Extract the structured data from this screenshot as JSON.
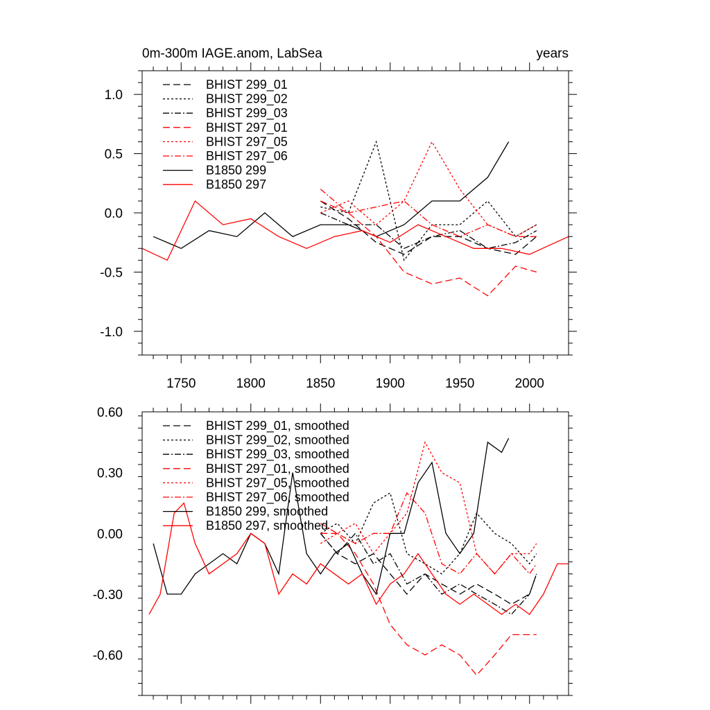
{
  "chart_data": [
    {
      "type": "line",
      "title": "0m-300m IAGE.anom, LabSea",
      "right_label": "years",
      "xlabel": "",
      "ylabel": "",
      "xlim": [
        1722,
        2028
      ],
      "ylim": [
        -1.2,
        1.2
      ],
      "xticks": [
        1750,
        1800,
        1850,
        1900,
        1950,
        2000
      ],
      "yticks": [
        -1.0,
        -0.5,
        0.0,
        0.5,
        1.0
      ],
      "ytick_labels": [
        "-1.0",
        "-0.5",
        "0.0",
        "0.5",
        "1.0"
      ],
      "legend_position": "top-left",
      "series": [
        {
          "name": "BHIST 299_01",
          "color": "#000000",
          "style": "dashed",
          "x": [
            1850,
            1870,
            1890,
            1910,
            1930,
            1950,
            1970,
            1990,
            2005
          ],
          "y": [
            0.1,
            -0.05,
            -0.25,
            -0.35,
            -0.2,
            -0.2,
            -0.3,
            -0.35,
            -0.2
          ]
        },
        {
          "name": "BHIST 299_02",
          "color": "#000000",
          "style": "dotted",
          "x": [
            1850,
            1870,
            1890,
            1910,
            1930,
            1950,
            1970,
            1990,
            2005
          ],
          "y": [
            0.05,
            0.0,
            0.6,
            -0.4,
            -0.1,
            -0.1,
            0.1,
            -0.2,
            -0.1
          ]
        },
        {
          "name": "BHIST 299_03",
          "color": "#000000",
          "style": "dashdot",
          "x": [
            1850,
            1870,
            1890,
            1910,
            1930,
            1950,
            1970,
            1990,
            2005
          ],
          "y": [
            0.0,
            -0.1,
            -0.1,
            -0.3,
            -0.2,
            -0.15,
            -0.3,
            -0.25,
            -0.15
          ]
        },
        {
          "name": "BHIST 297_01",
          "color": "#ff0000",
          "style": "dashed",
          "x": [
            1850,
            1870,
            1890,
            1910,
            1930,
            1950,
            1970,
            1990,
            2005
          ],
          "y": [
            0.1,
            0.0,
            -0.2,
            -0.5,
            -0.6,
            -0.55,
            -0.7,
            -0.45,
            -0.5
          ]
        },
        {
          "name": "BHIST 297_05",
          "color": "#ff0000",
          "style": "dotted",
          "x": [
            1850,
            1870,
            1890,
            1910,
            1930,
            1950,
            1970,
            1990,
            2005
          ],
          "y": [
            0.0,
            0.1,
            -0.1,
            0.1,
            0.6,
            0.2,
            -0.1,
            -0.2,
            -0.1
          ]
        },
        {
          "name": "BHIST 297_06",
          "color": "#ff0000",
          "style": "dashdot",
          "x": [
            1850,
            1870,
            1890,
            1910,
            1930,
            1950,
            1970,
            1990,
            2005
          ],
          "y": [
            0.2,
            0.0,
            0.05,
            0.1,
            -0.1,
            -0.2,
            -0.1,
            -0.2,
            -0.2
          ]
        },
        {
          "name": "B1850 299",
          "color": "#000000",
          "style": "solid",
          "x": [
            1730,
            1750,
            1770,
            1790,
            1810,
            1830,
            1850,
            1870,
            1890,
            1910,
            1930,
            1950,
            1970,
            1985
          ],
          "y": [
            -0.2,
            -0.3,
            -0.15,
            -0.2,
            0.0,
            -0.2,
            -0.1,
            -0.1,
            -0.2,
            -0.1,
            0.1,
            0.1,
            0.3,
            0.6
          ]
        },
        {
          "name": "B1850 297",
          "color": "#ff0000",
          "style": "solid",
          "x": [
            1722,
            1740,
            1760,
            1780,
            1800,
            1820,
            1840,
            1860,
            1880,
            1900,
            1920,
            1940,
            1960,
            1980,
            2000,
            2028
          ],
          "y": [
            -0.3,
            -0.4,
            0.1,
            -0.1,
            -0.05,
            -0.2,
            -0.3,
            -0.2,
            -0.15,
            -0.25,
            -0.1,
            -0.2,
            -0.3,
            -0.3,
            -0.35,
            -0.2
          ]
        }
      ]
    },
    {
      "type": "line",
      "title": "",
      "xlabel": "",
      "ylabel": "",
      "xlim": [
        1722,
        2028
      ],
      "ylim": [
        -0.8,
        0.6
      ],
      "xticks": [
        1750,
        1800,
        1850,
        1900,
        1950,
        2000
      ],
      "yticks": [
        -0.6,
        -0.3,
        0.0,
        0.3,
        0.6
      ],
      "ytick_labels": [
        "-0.60",
        "-0.30",
        "0.00",
        "0.30",
        "0.60"
      ],
      "legend_position": "top-left",
      "series": [
        {
          "name": "BHIST 299_01, smoothed",
          "color": "#000000",
          "style": "dashed",
          "x": [
            1850,
            1862,
            1875,
            1888,
            1900,
            1912,
            1925,
            1937,
            1950,
            1962,
            1975,
            1987,
            2000,
            2005
          ],
          "y": [
            0.0,
            -0.1,
            -0.15,
            -0.1,
            -0.2,
            -0.3,
            -0.2,
            -0.25,
            -0.3,
            -0.25,
            -0.3,
            -0.35,
            -0.3,
            -0.2
          ]
        },
        {
          "name": "BHIST 299_02, smoothed",
          "color": "#000000",
          "style": "dotted",
          "x": [
            1850,
            1862,
            1875,
            1888,
            1900,
            1912,
            1925,
            1937,
            1950,
            1962,
            1975,
            1987,
            2000,
            2005
          ],
          "y": [
            0.0,
            0.05,
            -0.05,
            0.15,
            0.2,
            -0.1,
            -0.15,
            -0.2,
            -0.1,
            0.1,
            0.0,
            -0.05,
            -0.15,
            -0.1
          ]
        },
        {
          "name": "BHIST 299_03, smoothed",
          "color": "#000000",
          "style": "dashdot",
          "x": [
            1850,
            1862,
            1875,
            1888,
            1900,
            1912,
            1925,
            1937,
            1950,
            1962,
            1975,
            1987,
            2000,
            2005
          ],
          "y": [
            0.0,
            -0.1,
            0.0,
            -0.15,
            -0.1,
            -0.25,
            -0.2,
            -0.3,
            -0.25,
            -0.3,
            -0.35,
            -0.4,
            -0.3,
            -0.2
          ]
        },
        {
          "name": "BHIST 297_01, smoothed",
          "color": "#ff0000",
          "style": "dashed",
          "x": [
            1850,
            1862,
            1875,
            1888,
            1900,
            1912,
            1925,
            1937,
            1950,
            1962,
            1975,
            1987,
            2000,
            2005
          ],
          "y": [
            0.0,
            0.0,
            -0.1,
            -0.25,
            -0.45,
            -0.55,
            -0.6,
            -0.55,
            -0.6,
            -0.7,
            -0.6,
            -0.5,
            -0.5,
            -0.5
          ]
        },
        {
          "name": "BHIST 297_05, smoothed",
          "color": "#ff0000",
          "style": "dotted",
          "x": [
            1850,
            1862,
            1875,
            1888,
            1900,
            1912,
            1925,
            1937,
            1950,
            1962,
            1975,
            1987,
            2000,
            2005
          ],
          "y": [
            -0.05,
            0.0,
            0.05,
            -0.1,
            0.0,
            0.1,
            0.45,
            0.3,
            0.25,
            -0.1,
            -0.2,
            -0.1,
            -0.1,
            -0.05
          ]
        },
        {
          "name": "BHIST 297_06, smoothed",
          "color": "#ff0000",
          "style": "dashdot",
          "x": [
            1850,
            1862,
            1875,
            1888,
            1900,
            1912,
            1925,
            1937,
            1950,
            1962,
            1975,
            1987,
            2000,
            2005
          ],
          "y": [
            0.05,
            0.0,
            -0.05,
            0.0,
            0.0,
            0.2,
            0.1,
            -0.15,
            -0.2,
            -0.1,
            -0.2,
            -0.1,
            -0.2,
            -0.15
          ]
        },
        {
          "name": "B1850 299, smoothed",
          "color": "#000000",
          "style": "solid",
          "x": [
            1730,
            1740,
            1750,
            1760,
            1770,
            1780,
            1790,
            1800,
            1810,
            1820,
            1830,
            1840,
            1850,
            1860,
            1870,
            1880,
            1890,
            1900,
            1910,
            1920,
            1930,
            1940,
            1950,
            1960,
            1970,
            1980,
            1985
          ],
          "y": [
            -0.05,
            -0.3,
            -0.3,
            -0.2,
            -0.15,
            -0.1,
            -0.15,
            0.0,
            -0.05,
            -0.2,
            0.3,
            -0.1,
            -0.2,
            -0.1,
            -0.05,
            -0.2,
            -0.3,
            0.0,
            0.0,
            0.25,
            0.35,
            0.0,
            -0.1,
            0.0,
            0.45,
            0.4,
            0.47
          ]
        },
        {
          "name": "B1850 297, smoothed",
          "color": "#ff0000",
          "style": "solid",
          "x": [
            1727,
            1735,
            1745,
            1752,
            1760,
            1770,
            1780,
            1790,
            1800,
            1810,
            1820,
            1830,
            1840,
            1850,
            1860,
            1870,
            1880,
            1890,
            1900,
            1910,
            1920,
            1930,
            1940,
            1950,
            1960,
            1970,
            1980,
            1990,
            2000,
            2010,
            2020,
            2028
          ],
          "y": [
            -0.4,
            -0.3,
            0.1,
            0.15,
            -0.05,
            -0.2,
            -0.15,
            -0.1,
            0.0,
            -0.05,
            -0.3,
            -0.2,
            -0.25,
            -0.15,
            -0.2,
            -0.25,
            -0.2,
            -0.35,
            -0.25,
            -0.2,
            -0.1,
            -0.2,
            -0.3,
            -0.35,
            -0.3,
            -0.35,
            -0.4,
            -0.35,
            -0.4,
            -0.3,
            -0.15,
            -0.15
          ]
        }
      ]
    }
  ]
}
